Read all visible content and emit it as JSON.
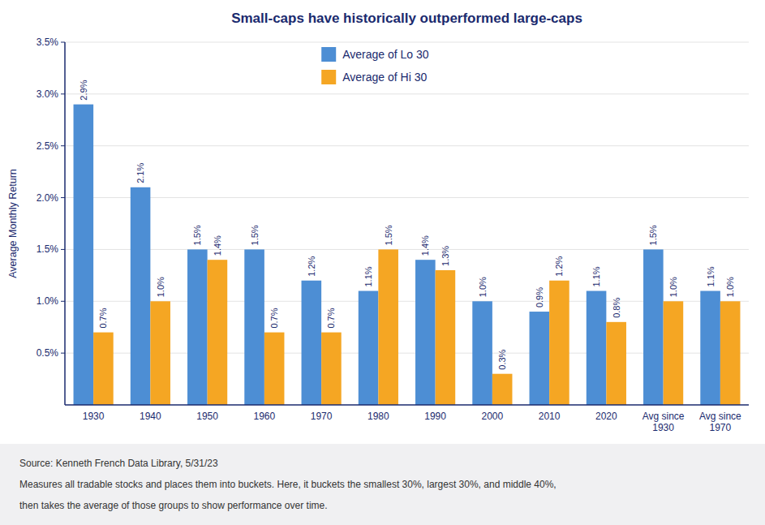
{
  "chart_data": {
    "type": "bar",
    "title": "Small-caps have historically outperformed large-caps",
    "categories": [
      "1930",
      "1940",
      "1950",
      "1960",
      "1970",
      "1980",
      "1990",
      "2000",
      "2010",
      "2020",
      "Avg since\n1930",
      "Avg since\n1970"
    ],
    "series": [
      {
        "name": "Average of Lo 30",
        "color": "#4D8ED4",
        "values": [
          2.9,
          2.1,
          1.5,
          1.5,
          1.2,
          1.1,
          1.4,
          1.0,
          0.9,
          1.1,
          1.5,
          1.1
        ],
        "value_labels": [
          "2.9%",
          "2.1%",
          "1.5%",
          "1.5%",
          "1.2%",
          "1.1%",
          "1.4%",
          "1.0%",
          "0.9%",
          "1.1%",
          "1.5%",
          "1.1%"
        ]
      },
      {
        "name": "Average of Hi 30",
        "color": "#F5A623",
        "values": [
          0.7,
          1.0,
          1.4,
          0.7,
          0.7,
          1.5,
          1.3,
          0.3,
          1.2,
          0.8,
          1.0,
          1.0
        ],
        "value_labels": [
          "0.7%",
          "1.0%",
          "1.4%",
          "0.7%",
          "0.7%",
          "1.5%",
          "1.3%",
          "0.3%",
          "1.2%",
          "0.8%",
          "1.0%",
          "1.0%"
        ]
      }
    ],
    "y_label": "Average Monthly Return",
    "ylim": [
      0,
      3.5
    ],
    "yticks": [
      {
        "value": 0.5,
        "label": "0.5%"
      },
      {
        "value": 1.0,
        "label": "1.0%"
      },
      {
        "value": 1.5,
        "label": "1.5%"
      },
      {
        "value": 2.0,
        "label": "2.0%"
      },
      {
        "value": 2.5,
        "label": "2.5%"
      },
      {
        "value": 3.0,
        "label": "3.0%"
      },
      {
        "value": 3.5,
        "label": "3.5%"
      }
    ],
    "grid": true,
    "legend": "top",
    "data_labels": true,
    "annotations": [
      "Source: Kenneth French Data Library, 5/31/23",
      "Measures all tradable stocks and places them into buckets. Here, it buckets the smallest 30%, largest 30%, and middle 40%,",
      "then takes the average of those groups to show performance over time."
    ]
  }
}
